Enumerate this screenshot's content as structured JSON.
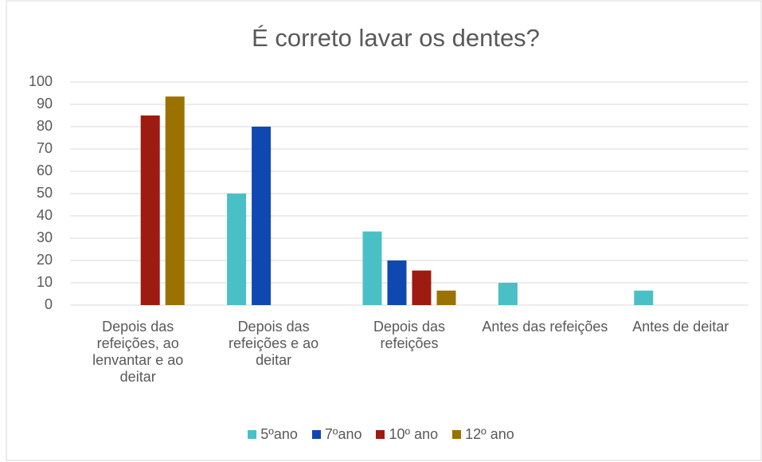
{
  "chart_data": {
    "type": "bar",
    "title": "É correto lavar os dentes?",
    "categories": [
      "Depois das refeições, ao lenvantar e ao deitar",
      "Depois das refeições e ao deitar",
      "Depois das refeições",
      "Antes das refeições",
      "Antes de deitar"
    ],
    "series": [
      {
        "name": "5ºano",
        "color": "#4bbfc6",
        "values": [
          0,
          50,
          33,
          10,
          6.5
        ]
      },
      {
        "name": "7ºano",
        "color": "#1048b2",
        "values": [
          0,
          80,
          20,
          0,
          0
        ]
      },
      {
        "name": "10º ano",
        "color": "#9e1b12",
        "values": [
          85,
          0,
          15.5,
          0,
          0
        ]
      },
      {
        "name": "12º ano",
        "color": "#9b7200",
        "values": [
          93.5,
          0,
          6.5,
          0,
          0
        ]
      }
    ],
    "ylim": [
      0,
      100
    ],
    "yticks": [
      0,
      10,
      20,
      30,
      40,
      50,
      60,
      70,
      80,
      90,
      100
    ],
    "grid": true,
    "legend": "bottom"
  }
}
